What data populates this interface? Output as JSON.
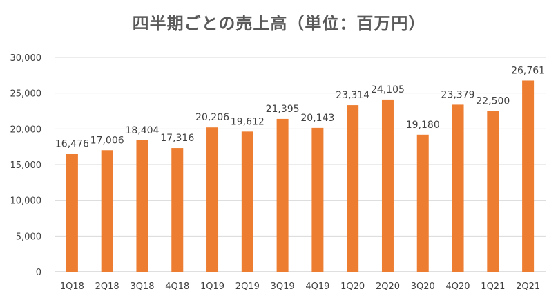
{
  "chart_data": {
    "type": "bar",
    "title": "四半期ごとの売上高（単位：百万円）",
    "xlabel": "",
    "ylabel": "",
    "categories": [
      "1Q18",
      "2Q18",
      "3Q18",
      "4Q18",
      "1Q19",
      "2Q19",
      "3Q19",
      "4Q19",
      "1Q20",
      "2Q20",
      "3Q20",
      "4Q20",
      "1Q21",
      "2Q21"
    ],
    "values": [
      16476,
      17006,
      18404,
      17316,
      20206,
      19612,
      21395,
      20143,
      23314,
      24105,
      19180,
      23379,
      22500,
      26761
    ],
    "data_labels": [
      "16,476",
      "17,006",
      "18,404",
      "17,316",
      "20,206",
      "19,612",
      "21,395",
      "20,143",
      "23,314",
      "24,105",
      "19,180",
      "23,379",
      "22,500",
      "26,761"
    ],
    "ylim": [
      0,
      30000
    ],
    "yticks": [
      "0",
      "5,000",
      "10,000",
      "15,000",
      "20,000",
      "25,000",
      "30,000"
    ],
    "grid": true,
    "legend": "none",
    "bar_color": "#ED7D31",
    "grid_color": "#D9D9D9"
  }
}
